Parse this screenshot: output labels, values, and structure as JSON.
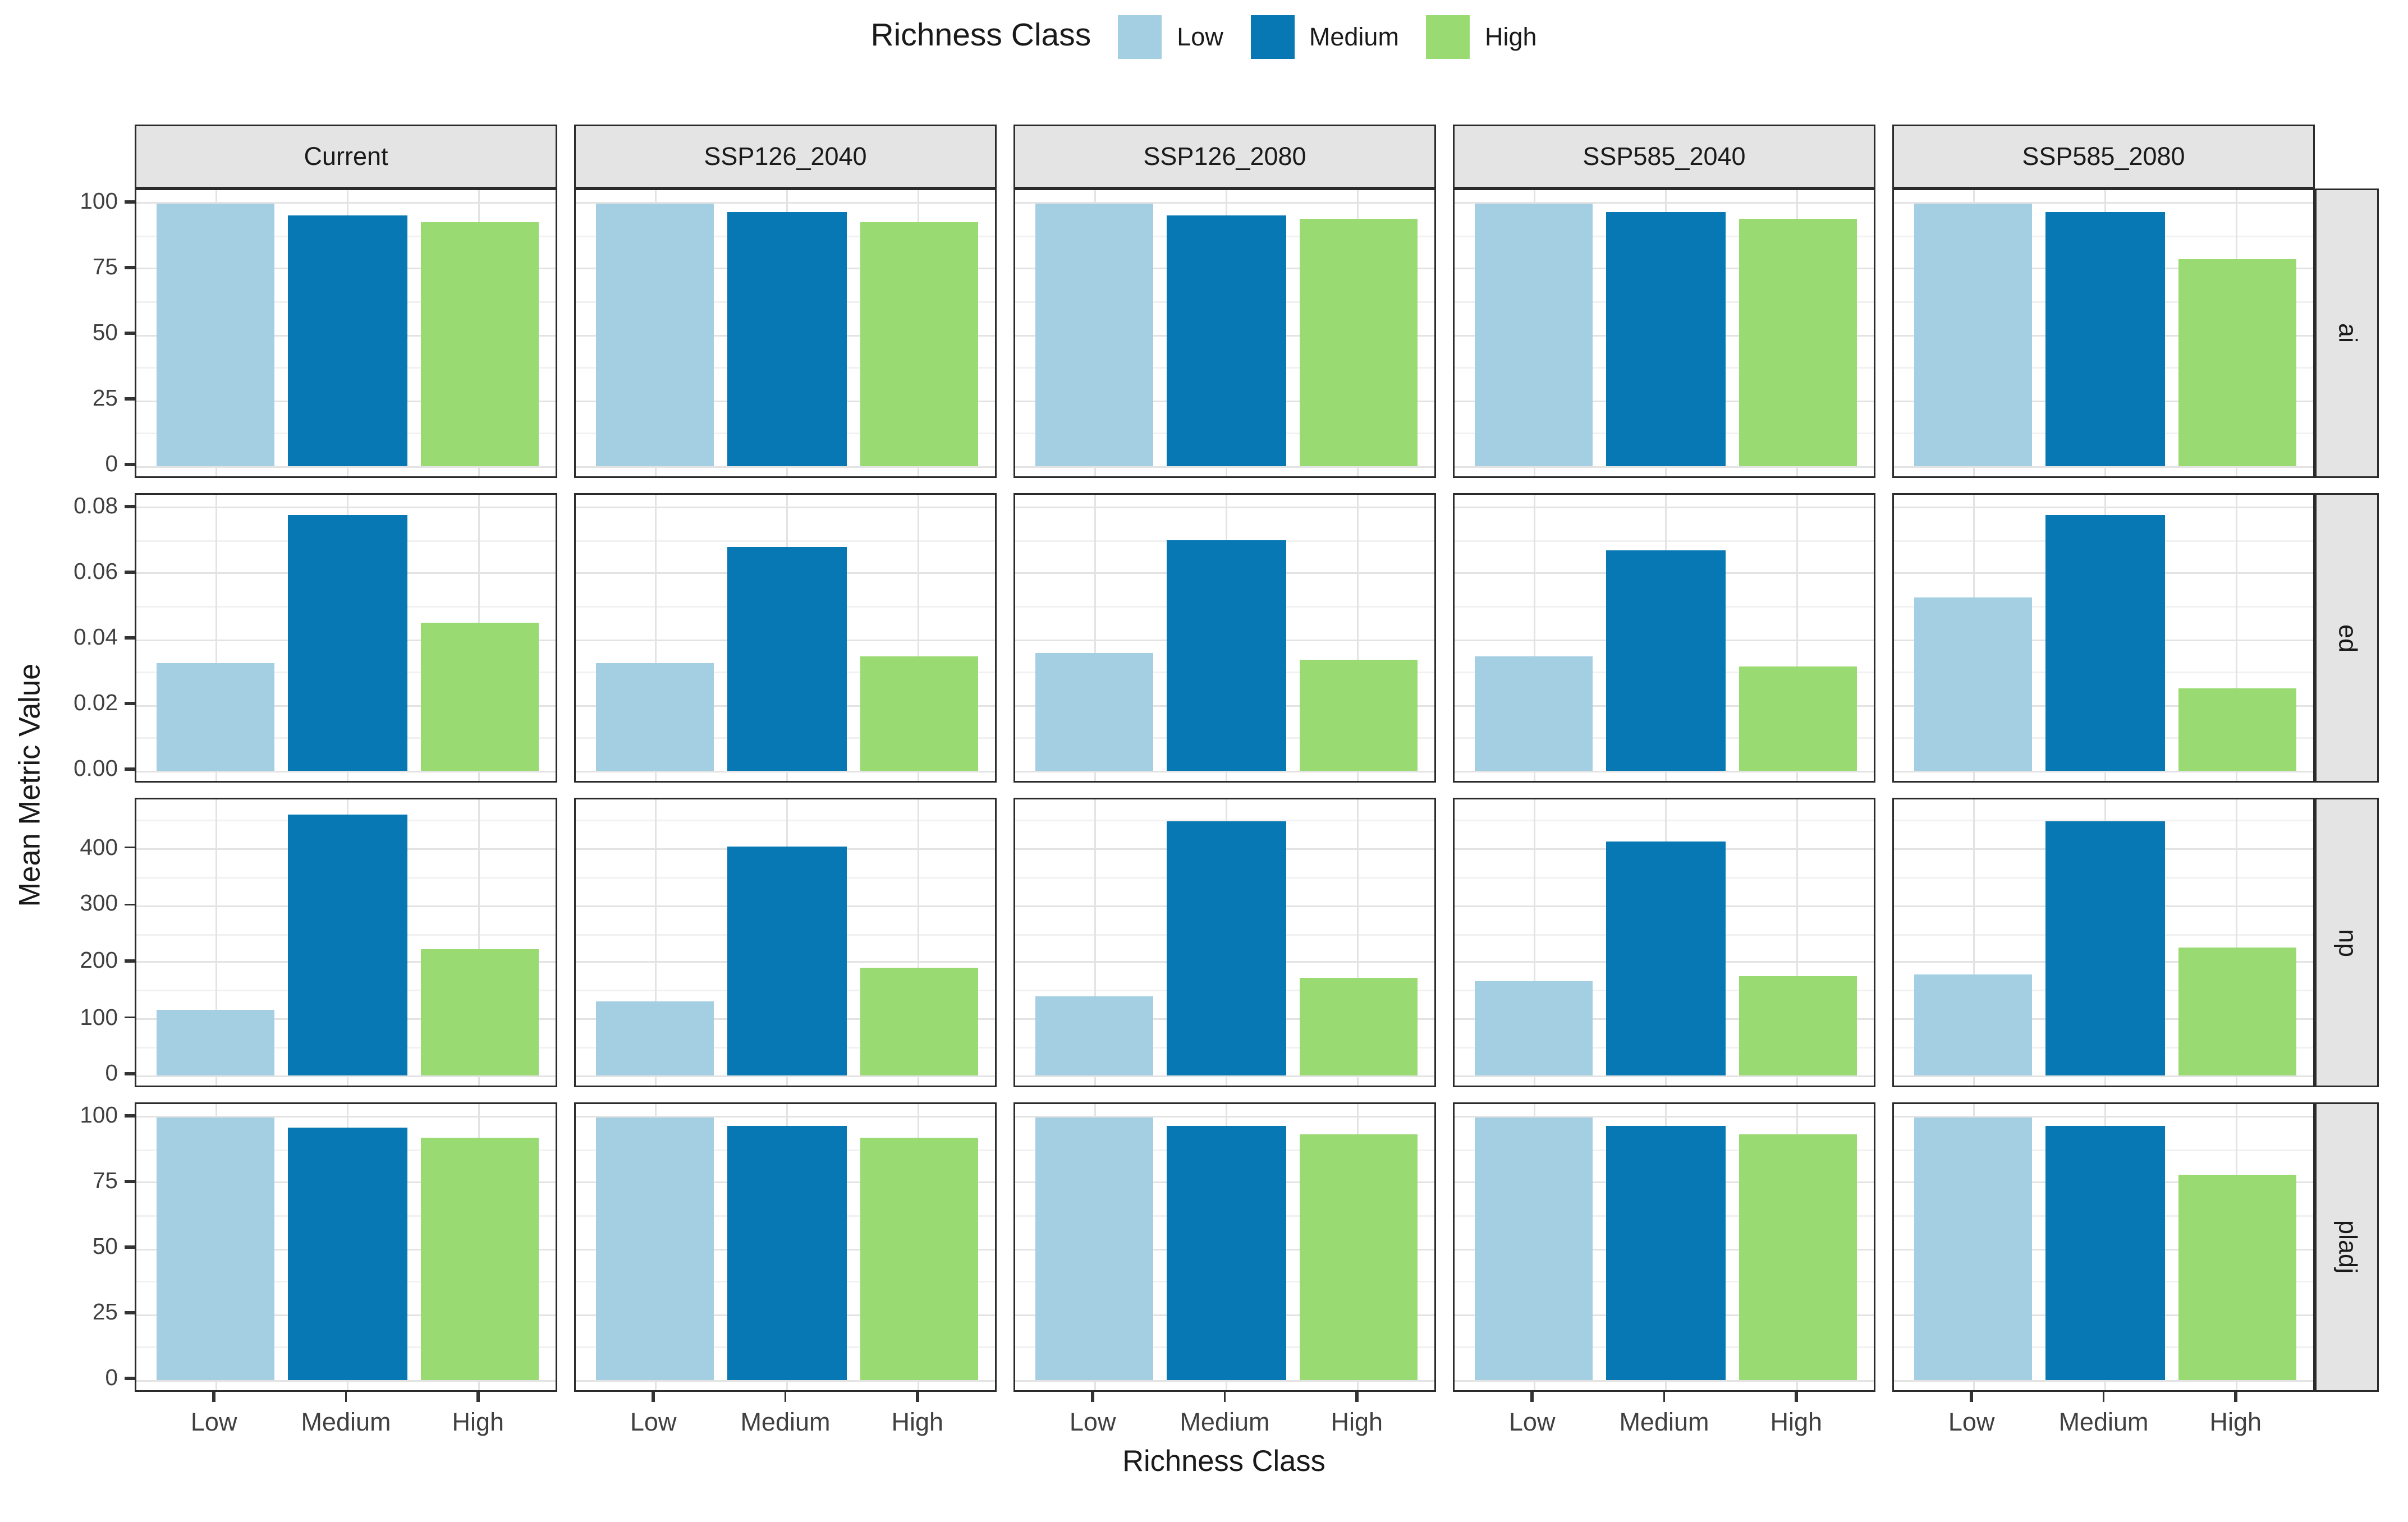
{
  "legend": {
    "title": "Richness Class",
    "items": [
      {
        "label": "Low",
        "color": "#A4CEE1"
      },
      {
        "label": "Medium",
        "color": "#0778B3"
      },
      {
        "label": "High",
        "color": "#9ADA73"
      }
    ]
  },
  "axes": {
    "x_title": "Richness Class",
    "y_title": "Mean Metric Value"
  },
  "chart_data": {
    "type": "bar",
    "title": "",
    "xlabel": "Richness Class",
    "ylabel": "Mean Metric Value",
    "grid": true,
    "legend_position": "top",
    "categories": [
      "Low",
      "Medium",
      "High"
    ],
    "series_colors": {
      "Low": "#A4CEE1",
      "Medium": "#0778B3",
      "High": "#9ADA73"
    },
    "facet_columns": [
      "Current",
      "SSP126_2040",
      "SSP126_2080",
      "SSP585_2040",
      "SSP585_2080"
    ],
    "facet_rows": [
      "ai",
      "ed",
      "np",
      "pladj"
    ],
    "rows": [
      {
        "metric": "ai",
        "ticks": [
          0,
          25,
          50,
          75,
          100
        ],
        "tick_labels": [
          "0",
          "25",
          "50",
          "75",
          "100"
        ],
        "decimals": 0,
        "ylim": [
          0,
          100
        ],
        "values": {
          "Current": [
            100,
            95.5,
            93
          ],
          "SSP126_2040": [
            100,
            96.5,
            93
          ],
          "SSP126_2080": [
            100,
            95.5,
            94
          ],
          "SSP585_2040": [
            100,
            96.5,
            94
          ],
          "SSP585_2080": [
            100,
            96.5,
            78.5
          ]
        }
      },
      {
        "metric": "ed",
        "ticks": [
          0,
          0.02,
          0.04,
          0.06,
          0.08
        ],
        "tick_labels": [
          "0.00",
          "0.02",
          "0.04",
          "0.06",
          "0.08"
        ],
        "decimals": 2,
        "ylim": [
          0,
          0.08
        ],
        "values": {
          "Current": [
            0.033,
            0.078,
            0.045
          ],
          "SSP126_2040": [
            0.033,
            0.068,
            0.035
          ],
          "SSP126_2080": [
            0.036,
            0.07,
            0.034
          ],
          "SSP585_2040": [
            0.035,
            0.067,
            0.032
          ],
          "SSP585_2080": [
            0.053,
            0.078,
            0.025
          ]
        }
      },
      {
        "metric": "np",
        "ticks": [
          0,
          100,
          200,
          300,
          400
        ],
        "tick_labels": [
          "0",
          "100",
          "200",
          "300",
          "400"
        ],
        "decimals": 0,
        "ylim": [
          0,
          465
        ],
        "values": {
          "Current": [
            117,
            460,
            225
          ],
          "SSP126_2040": [
            130,
            405,
            192
          ],
          "SSP126_2080": [
            141,
            450,
            173
          ],
          "SSP585_2040": [
            168,
            415,
            175
          ],
          "SSP585_2080": [
            178,
            450,
            228
          ]
        }
      },
      {
        "metric": "pladj",
        "ticks": [
          0,
          25,
          50,
          75,
          100
        ],
        "tick_labels": [
          "0",
          "25",
          "50",
          "75",
          "100"
        ],
        "decimals": 0,
        "ylim": [
          0,
          100
        ],
        "values": {
          "Current": [
            100,
            96,
            92.5
          ],
          "SSP126_2040": [
            100,
            96.5,
            92.5
          ],
          "SSP126_2080": [
            100,
            96.5,
            93.5
          ],
          "SSP585_2040": [
            100,
            96.5,
            93.5
          ],
          "SSP585_2080": [
            100,
            96.5,
            78
          ]
        }
      }
    ]
  }
}
